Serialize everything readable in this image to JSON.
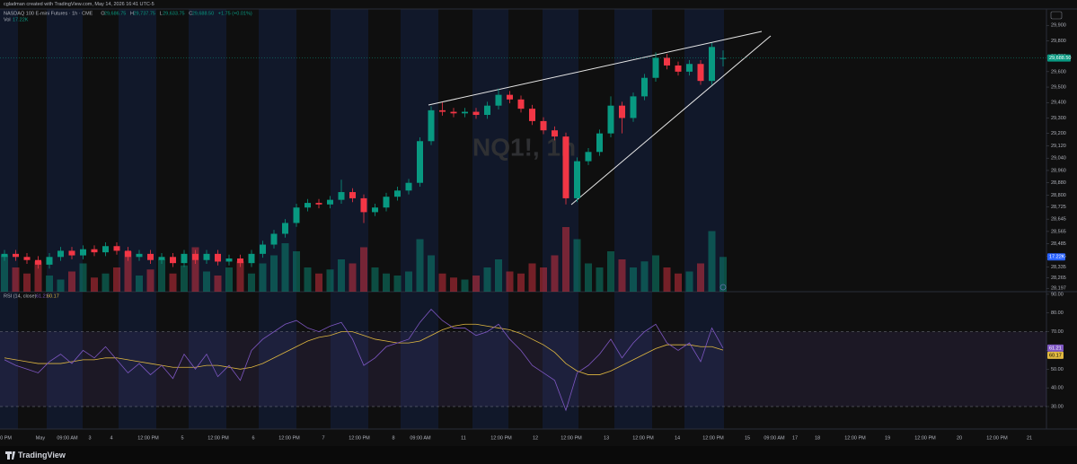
{
  "chart_data": {
    "type": "candlestick",
    "header": "cgladman created with TradingView.com, May 14, 2026 16:41 UTC-5",
    "symbol": "NASDAQ 100 E-mini Futures · 1h · CME",
    "legend_ohlc": [
      {
        "key": "O",
        "value": "29,686.75"
      },
      {
        "key": "H",
        "value": "29,737.75"
      },
      {
        "key": "L",
        "value": "29,633.75"
      },
      {
        "key": "C",
        "value": "29,688.50"
      }
    ],
    "change": "+1.75 (+0.01%)",
    "volume_legend": {
      "key": "Vol",
      "value": "17.22K"
    },
    "watermark": "NQ1!, 1h",
    "price_tag": "29,688.50",
    "volume_tag": "17.22K",
    "footer": "TradingView",
    "up_color": "#089981",
    "down_color": "#f23645",
    "ylim": [
      28175,
      30006
    ],
    "yticks": [
      {
        "value": 29900,
        "label": "29,900"
      },
      {
        "value": 29800,
        "label": "29,800"
      },
      {
        "value": 29700,
        "label": "29,700"
      },
      {
        "value": 29600,
        "label": "29,600"
      },
      {
        "value": 29500,
        "label": "29,500"
      },
      {
        "value": 29400,
        "label": "29,400"
      },
      {
        "value": 29300,
        "label": "29,300"
      },
      {
        "value": 29200,
        "label": "29,200"
      },
      {
        "value": 29120,
        "label": "29,120"
      },
      {
        "value": 29040,
        "label": "29,040"
      },
      {
        "value": 28960,
        "label": "28,960"
      },
      {
        "value": 28880,
        "label": "28,880"
      },
      {
        "value": 28800,
        "label": "28,800"
      },
      {
        "value": 28725,
        "label": "28,725"
      },
      {
        "value": 28645,
        "label": "28,645"
      },
      {
        "value": 28565,
        "label": "28,565"
      },
      {
        "value": 28485,
        "label": "28,485"
      },
      {
        "value": 28405,
        "label": "28,405"
      },
      {
        "value": 28335,
        "label": "28,335"
      },
      {
        "value": 28265,
        "label": "28,265"
      },
      {
        "value": 28197,
        "label": "28,197"
      }
    ],
    "x_labels": [
      "00 PM",
      "May",
      "09:00 AM",
      "3",
      "4",
      "12:00 PM",
      "5",
      "12:00 PM",
      "6",
      "12:00 PM",
      "7",
      "12:00 PM",
      "8",
      "09:00 AM",
      "11",
      "12:00 PM",
      "12",
      "12:00 PM",
      "13",
      "12:00 PM",
      "14",
      "12:00 PM",
      "15",
      "09:00 AM",
      "17",
      "18",
      "12:00 PM",
      "19",
      "12:00 PM",
      "20",
      "12:00 PM",
      "21"
    ],
    "open": [
      28400,
      28420,
      28400,
      28380,
      28350,
      28400,
      28440,
      28410,
      28450,
      28430,
      28470,
      28440,
      28400,
      28420,
      28380,
      28400,
      28360,
      28420,
      28380,
      28420,
      28370,
      28390,
      28360,
      28420,
      28480,
      28550,
      28620,
      28720,
      28750,
      28740,
      28770,
      28820,
      28780,
      28690,
      28720,
      28790,
      28830,
      28880,
      29150,
      29350,
      29340,
      29330,
      29340,
      29320,
      29380,
      29450,
      29420,
      29360,
      29280,
      29220,
      29180,
      28780,
      29020,
      29080,
      29200,
      29380,
      29300,
      29440,
      29560,
      29690,
      29640,
      29600,
      29650,
      29540,
      29686.75
    ],
    "high": [
      28445,
      28445,
      28425,
      28405,
      28425,
      28465,
      28465,
      28475,
      28475,
      28495,
      28495,
      28465,
      28445,
      28445,
      28425,
      28425,
      28445,
      28445,
      28445,
      28445,
      28415,
      28415,
      28445,
      28505,
      28575,
      28645,
      28745,
      28775,
      28775,
      28795,
      28900,
      28845,
      28805,
      28745,
      28815,
      28855,
      28905,
      29175,
      29375,
      29400,
      29365,
      29365,
      29365,
      29405,
      29490,
      29475,
      29445,
      29385,
      29305,
      29245,
      29205,
      29045,
      29105,
      29225,
      29440,
      29405,
      29465,
      29585,
      29725,
      29715,
      29665,
      29675,
      29675,
      29785,
      29737.75
    ],
    "low": [
      28375,
      28375,
      28355,
      28325,
      28325,
      28375,
      28385,
      28385,
      28405,
      28405,
      28415,
      28375,
      28375,
      28355,
      28355,
      28335,
      28335,
      28355,
      28355,
      28345,
      28345,
      28335,
      28335,
      28395,
      28455,
      28525,
      28595,
      28695,
      28715,
      28715,
      28745,
      28755,
      28620,
      28665,
      28695,
      28765,
      28805,
      28855,
      29125,
      29315,
      29305,
      29305,
      29295,
      29295,
      29355,
      29395,
      29335,
      29255,
      29195,
      29155,
      28740,
      28755,
      28995,
      29055,
      29175,
      29200,
      29275,
      29415,
      29535,
      29615,
      29575,
      29575,
      29515,
      29515,
      29633.75
    ],
    "close": [
      28420,
      28400,
      28380,
      28350,
      28400,
      28440,
      28410,
      28450,
      28430,
      28470,
      28440,
      28400,
      28420,
      28380,
      28400,
      28360,
      28420,
      28380,
      28420,
      28370,
      28390,
      28360,
      28420,
      28480,
      28550,
      28620,
      28720,
      28750,
      28740,
      28770,
      28820,
      28780,
      28690,
      28720,
      28790,
      28830,
      28880,
      29150,
      29350,
      29340,
      29330,
      29340,
      29320,
      29380,
      29450,
      29420,
      29360,
      29280,
      29220,
      29180,
      28780,
      29020,
      29080,
      29200,
      29380,
      29300,
      29440,
      29560,
      29690,
      29640,
      29600,
      29650,
      29540,
      29760,
      29688.5
    ],
    "volume": [
      18000,
      12000,
      9000,
      15000,
      8000,
      6000,
      10000,
      14000,
      7000,
      9000,
      12000,
      20000,
      8000,
      11000,
      16000,
      9000,
      13000,
      22000,
      10000,
      8000,
      12000,
      15000,
      9000,
      14000,
      18000,
      24000,
      20000,
      12000,
      9000,
      11000,
      16000,
      14000,
      22000,
      12000,
      9000,
      8000,
      10000,
      26000,
      18000,
      9000,
      7000,
      6000,
      8000,
      12000,
      16000,
      10000,
      9000,
      14000,
      12000,
      18000,
      32000,
      26000,
      14000,
      12000,
      20000,
      16000,
      12000,
      15000,
      18000,
      12000,
      9000,
      10000,
      14000,
      30000,
      17220
    ],
    "vollim": [
      0,
      40000
    ],
    "rsi": {
      "title": "RSI (14, close)",
      "values": [
        55,
        52,
        50,
        48,
        54,
        58,
        53,
        60,
        56,
        62,
        55,
        48,
        53,
        47,
        52,
        45,
        58,
        50,
        58,
        46,
        52,
        44,
        60,
        66,
        70,
        74,
        76,
        72,
        70,
        73,
        75,
        66,
        52,
        56,
        62,
        64,
        66,
        75,
        82,
        76,
        72,
        72,
        68,
        70,
        74,
        66,
        60,
        52,
        48,
        44,
        28,
        48,
        52,
        58,
        66,
        56,
        64,
        70,
        74,
        64,
        60,
        64,
        54,
        72,
        61.21
      ],
      "ma": [
        56,
        55,
        54,
        53,
        53,
        53,
        54,
        55,
        55,
        56,
        56,
        55,
        54,
        53,
        52,
        51,
        51,
        51,
        52,
        52,
        51,
        50,
        51,
        53,
        56,
        59,
        62,
        65,
        67,
        68,
        70,
        70,
        68,
        66,
        65,
        64,
        64,
        65,
        68,
        71,
        73,
        74,
        74,
        73,
        72,
        71,
        69,
        66,
        63,
        59,
        53,
        49,
        47,
        47,
        49,
        52,
        55,
        58,
        61,
        63,
        63,
        63,
        62,
        62,
        60.17
      ],
      "value_label": "61.21",
      "ma_label": "60.17",
      "line_color": "#7e57c2",
      "ma_color": "#e0b840",
      "bands": [
        70,
        30
      ],
      "ylim": [
        18,
        91.4
      ],
      "yticks": [
        {
          "value": 90,
          "label": "90.00"
        },
        {
          "value": 80,
          "label": "80.00"
        },
        {
          "value": 70,
          "label": "70.00"
        },
        {
          "value": 60,
          "label": "60.00"
        },
        {
          "value": 50,
          "label": "50.00"
        },
        {
          "value": 40,
          "label": "40.00"
        },
        {
          "value": 30,
          "label": "30.00"
        }
      ]
    }
  }
}
